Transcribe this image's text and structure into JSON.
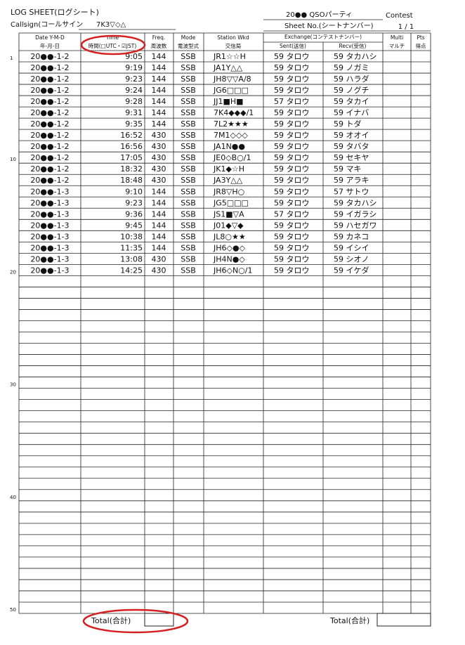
{
  "header": {
    "title": "LOG SHEET(ログシート)",
    "callsign_label": "Callsign(コールサイン",
    "callsign": "7K3▽◇△",
    "contest_name": "20●● QSOパーティ",
    "contest_label": "Contest",
    "sheet_label": "Sheet No.(シートナンバー)",
    "sheet": "1 / 1"
  },
  "columns": {
    "date": [
      "Date Y-M-D",
      "年-月-日"
    ],
    "time": [
      "Time",
      "時間(□UTC・☑JST)"
    ],
    "freq": [
      "Freq.",
      "周波数"
    ],
    "mode": [
      "Mode",
      "電波型式"
    ],
    "station": [
      "Station Wkd",
      "交信局"
    ],
    "exchange": "Exchange(コンテストナンバー)",
    "sent": "Sent(送信)",
    "recv": "Recv(受信)",
    "multi": [
      "Multi",
      "マルチ"
    ],
    "pts": [
      "Pts",
      "得点"
    ]
  },
  "row_numbers": [
    1,
    10,
    20,
    30,
    40,
    50
  ],
  "rows": [
    [
      "20●●-1-2",
      "9:05",
      "144",
      "SSB",
      "JR1☆☆H",
      "59 タロウ",
      "59 タカハシ"
    ],
    [
      "20●●-1-2",
      "9:19",
      "144",
      "SSB",
      "JA1Y△△",
      "59 タロウ",
      "59 ノガミ"
    ],
    [
      "20●●-1-2",
      "9:23",
      "144",
      "SSB",
      "JH8▽▽A/8",
      "59 タロウ",
      "59 ハラダ"
    ],
    [
      "20●●-1-2",
      "9:24",
      "144",
      "SSB",
      "JG6□□□",
      "59 タロウ",
      "59 ノグチ"
    ],
    [
      "20●●-1-2",
      "9:28",
      "144",
      "SSB",
      "JJ1■H■",
      "57 タロウ",
      "59 タカイ"
    ],
    [
      "20●●-1-2",
      "9:31",
      "144",
      "SSB",
      "7K4◆◆◆/1",
      "59 タロウ",
      "59 イナバ"
    ],
    [
      "20●●-1-2",
      "9:35",
      "144",
      "SSB",
      "7L2★★★",
      "59 タロウ",
      "59 トダ"
    ],
    [
      "20●●-1-2",
      "16:52",
      "430",
      "SSB",
      "7M1◇◇◇",
      "59 タロウ",
      "59 オオイ"
    ],
    [
      "20●●-1-2",
      "16:56",
      "430",
      "SSB",
      "JA1N●●",
      "59 タロウ",
      "59 タバタ"
    ],
    [
      "20●●-1-2",
      "17:05",
      "430",
      "SSB",
      "JE0◇B○/1",
      "59 タロウ",
      "59 セキヤ"
    ],
    [
      "20●●-1-2",
      "18:32",
      "430",
      "SSB",
      "JK1◆☆H",
      "59 タロウ",
      "59 マキ"
    ],
    [
      "20●●-1-2",
      "18:48",
      "430",
      "SSB",
      "JA3Y△△",
      "59 タロウ",
      "59 アラキ"
    ],
    [
      "20●●-1-3",
      "9:10",
      "144",
      "SSB",
      "JR8▽H○",
      "59 タロウ",
      "57 サトウ"
    ],
    [
      "20●●-1-3",
      "9:23",
      "144",
      "SSB",
      "JG5□□□",
      "59 タロウ",
      "59 タカハシ"
    ],
    [
      "20●●-1-3",
      "9:36",
      "144",
      "SSB",
      "JS1■▽A",
      "57 タロウ",
      "59 イガラシ"
    ],
    [
      "20●●-1-3",
      "9:45",
      "144",
      "SSB",
      "J01◆▽◆",
      "59 タロウ",
      "59 ハセガワ"
    ],
    [
      "20●●-1-3",
      "10:38",
      "144",
      "SSB",
      "JL8○★★",
      "59 タロウ",
      "59 カネコ"
    ],
    [
      "20●●-1-3",
      "11:35",
      "144",
      "SSB",
      "JH6◇●◇",
      "59 タロウ",
      "59 イシイ"
    ],
    [
      "20●●-1-3",
      "13:08",
      "430",
      "SSB",
      "JH4N●◇",
      "59 タロウ",
      "59 シオノ"
    ],
    [
      "20●●-1-3",
      "14:25",
      "430",
      "SSB",
      "JH6◇N○/1",
      "59 タロウ",
      "59 イケダ"
    ]
  ],
  "footer": {
    "total_left": "Total(合計)",
    "total_right": "Total(合計)"
  }
}
